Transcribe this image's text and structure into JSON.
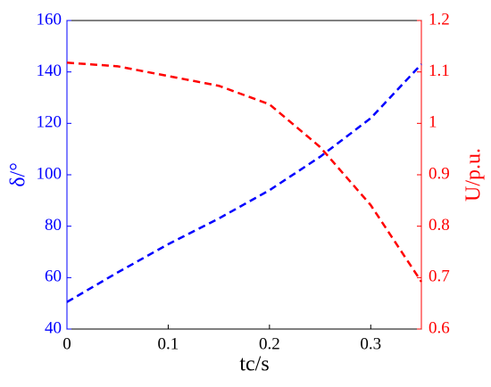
{
  "chart_data": {
    "type": "line",
    "x_label": "tc/s",
    "y_label": "δ/°",
    "y2_label": "U/p.u.",
    "x": [
      0,
      0.05,
      0.1,
      0.15,
      0.2,
      0.25,
      0.3,
      0.35
    ],
    "series": [
      {
        "name": "δ",
        "color": "#0000ff",
        "values": [
          50.5,
          62,
          73,
          83,
          94,
          107,
          122,
          143
        ]
      },
      {
        "name": "U",
        "color": "#ff0000",
        "axis": "y2",
        "values": [
          1.118,
          1.111,
          1.092,
          1.073,
          1.037,
          0.954,
          0.841,
          0.692
        ]
      }
    ],
    "xlim": [
      0,
      0.35
    ],
    "xticks": [
      0,
      0.1,
      0.2,
      0.3
    ],
    "ylim": [
      40,
      160
    ],
    "yticks": [
      40,
      60,
      80,
      100,
      120,
      140,
      160
    ],
    "y2lim": [
      0.6,
      1.2
    ],
    "y2ticks": [
      0.6,
      0.7,
      0.8,
      0.9,
      1,
      1.1,
      1.2
    ]
  }
}
